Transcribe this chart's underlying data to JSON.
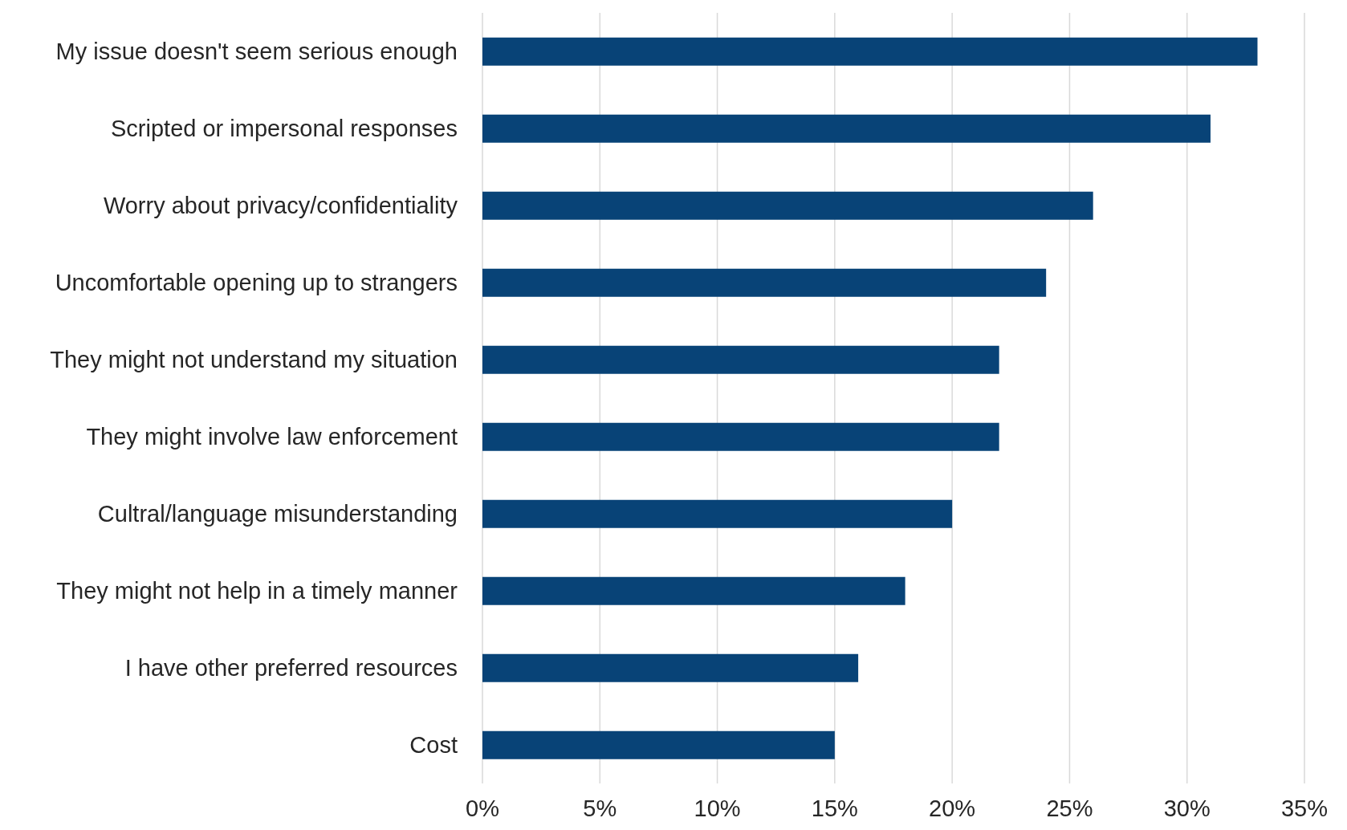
{
  "chart_data": {
    "type": "bar",
    "orientation": "horizontal",
    "categories": [
      "My issue doesn't seem serious enough",
      "Scripted or impersonal responses",
      "Worry about privacy/confidentiality",
      "Uncomfortable opening up to strangers",
      "They might not understand my situation",
      "They might involve law enforcement",
      "Cultral/language misunderstanding",
      "They might not help in a timely manner",
      "I have other preferred resources",
      "Cost"
    ],
    "values": [
      33,
      31,
      26,
      24,
      22,
      22,
      20,
      18,
      16,
      15
    ],
    "color": "#084377",
    "xlim": [
      0,
      35
    ],
    "xticks": [
      {
        "value": 0,
        "label": "0%"
      },
      {
        "value": 5,
        "label": "5%"
      },
      {
        "value": 10,
        "label": "10%"
      },
      {
        "value": 15,
        "label": "15%"
      },
      {
        "value": 20,
        "label": "20%"
      },
      {
        "value": 25,
        "label": "25%"
      },
      {
        "value": 30,
        "label": "30%"
      },
      {
        "value": 35,
        "label": "35%"
      }
    ],
    "grid": "x"
  }
}
